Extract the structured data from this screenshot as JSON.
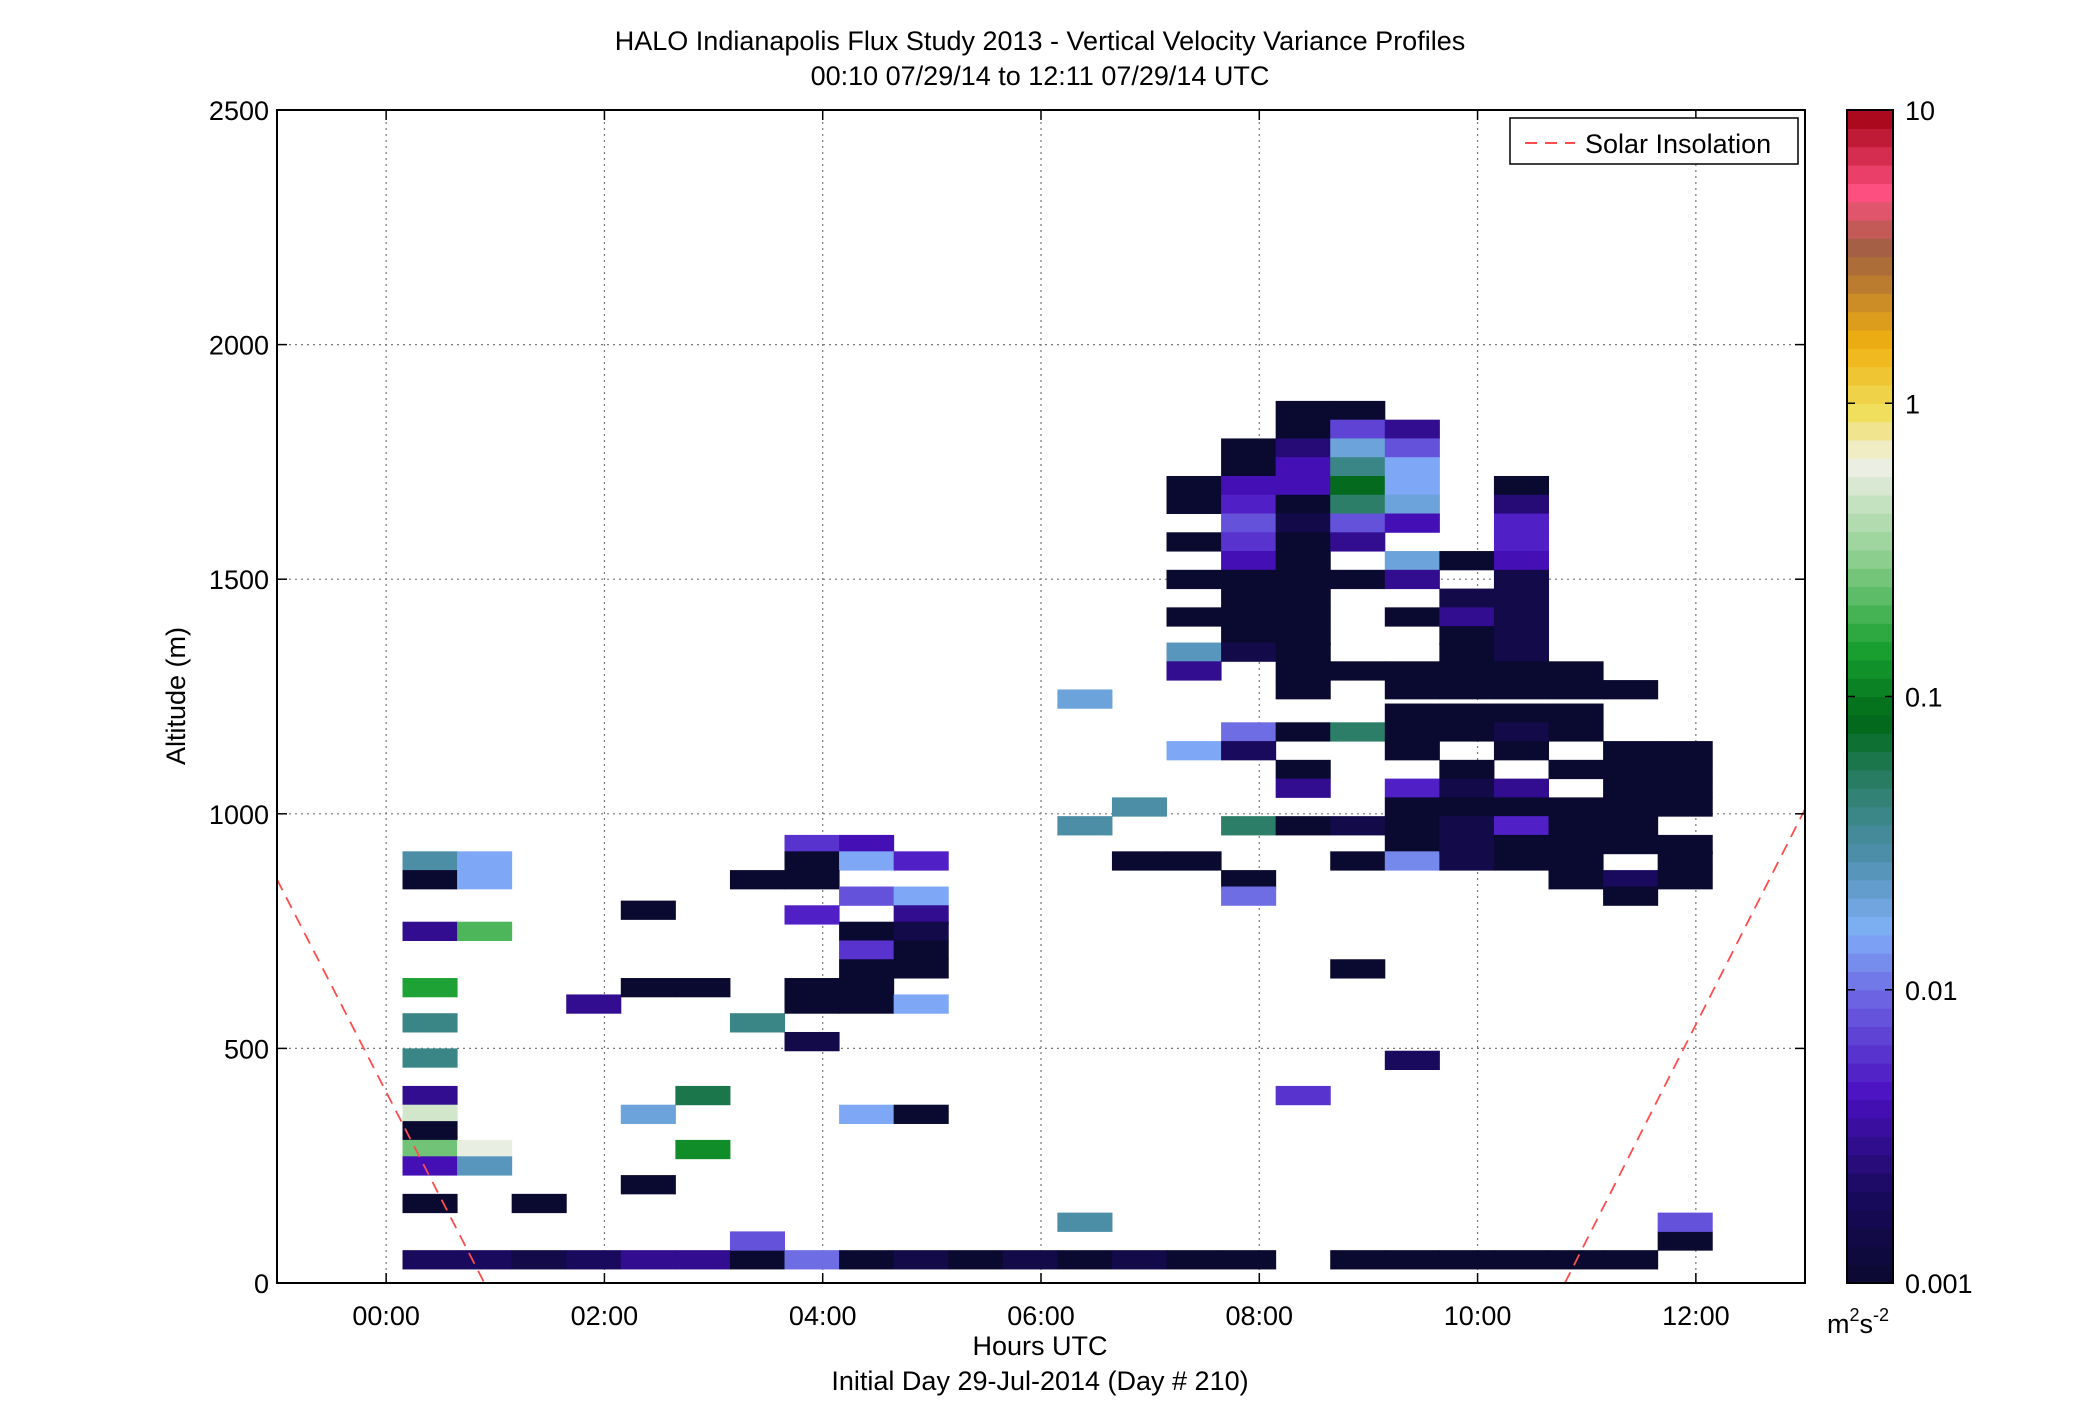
{
  "chart_data": {
    "type": "heatmap",
    "title": "HALO Indianapolis Flux Study 2013 - Vertical Velocity Variance Profiles",
    "subtitle": "00:10 07/29/14 to 12:11 07/29/14  UTC",
    "xlabel": "Hours UTC",
    "xlabel2": "Initial Day 29-Jul-2014 (Day # 210)",
    "ylabel": "Altitude (m)",
    "xlim": [
      -1.0,
      13.0
    ],
    "ylim": [
      0,
      2500
    ],
    "xticks": [
      0,
      2,
      4,
      6,
      8,
      10,
      12
    ],
    "xtick_labels": [
      "00:00",
      "02:00",
      "04:00",
      "06:00",
      "08:00",
      "10:00",
      "12:00"
    ],
    "yticks": [
      0,
      500,
      1000,
      1500,
      2000,
      2500
    ],
    "ytick_labels": [
      "0",
      "500",
      "1000",
      "1500",
      "2000",
      "2500"
    ],
    "grid": true,
    "legend": {
      "position": "top-right",
      "entries": [
        {
          "label": "Solar Insolation",
          "color": "#ff4c4c",
          "style": "dashed"
        }
      ]
    },
    "colorbar": {
      "scale": "log",
      "range": [
        0.001,
        10
      ],
      "tick_values": [
        0.001,
        0.01,
        0.1,
        1,
        10
      ],
      "tick_labels": [
        "0.001",
        "0.01",
        "0.1",
        "1",
        "10"
      ],
      "units_base": "m",
      "units_exp1": "2",
      "units_mid": "s",
      "units_exp2": "-2"
    },
    "cell_width_hours": 0.5,
    "cell_height_m": 40,
    "cells": [
      {
        "t": 0.4,
        "z": 900,
        "v": 0.03
      },
      {
        "t": 0.9,
        "z": 900,
        "v": 0.015
      },
      {
        "t": 0.4,
        "z": 860,
        "v": 0.001
      },
      {
        "t": 0.9,
        "z": 860,
        "v": 0.015
      },
      {
        "t": 0.4,
        "z": 750,
        "v": 0.003
      },
      {
        "t": 0.9,
        "z": 750,
        "v": 0.2
      },
      {
        "t": 0.4,
        "z": 630,
        "v": 0.15
      },
      {
        "t": 0.4,
        "z": 555,
        "v": 0.04
      },
      {
        "t": 0.4,
        "z": 480,
        "v": 0.04
      },
      {
        "t": 0.4,
        "z": 400,
        "v": 0.003
      },
      {
        "t": 0.4,
        "z": 360,
        "v": 0.5
      },
      {
        "t": 0.4,
        "z": 325,
        "v": 0.001
      },
      {
        "t": 0.4,
        "z": 285,
        "v": 0.25
      },
      {
        "t": 0.9,
        "z": 285,
        "v": 0.6
      },
      {
        "t": 0.4,
        "z": 250,
        "v": 0.004
      },
      {
        "t": 0.9,
        "z": 250,
        "v": 0.025
      },
      {
        "t": 0.4,
        "z": 170,
        "v": 0.001
      },
      {
        "t": 1.4,
        "z": 170,
        "v": 0.001
      },
      {
        "t": 0.4,
        "z": 50,
        "v": 0.002
      },
      {
        "t": 0.9,
        "z": 50,
        "v": 0.002
      },
      {
        "t": 1.4,
        "z": 50,
        "v": 0.0015
      },
      {
        "t": 1.9,
        "z": 50,
        "v": 0.002
      },
      {
        "t": 2.4,
        "z": 50,
        "v": 0.003
      },
      {
        "t": 2.9,
        "z": 50,
        "v": 0.003
      },
      {
        "t": 3.4,
        "z": 50,
        "v": 0.001
      },
      {
        "t": 3.4,
        "z": 90,
        "v": 0.008
      },
      {
        "t": 3.9,
        "z": 50,
        "v": 0.01
      },
      {
        "t": 4.4,
        "z": 50,
        "v": 0.001
      },
      {
        "t": 4.9,
        "z": 50,
        "v": 0.0015
      },
      {
        "t": 5.4,
        "z": 50,
        "v": 0.001
      },
      {
        "t": 5.9,
        "z": 50,
        "v": 0.0015
      },
      {
        "t": 6.4,
        "z": 50,
        "v": 0.001
      },
      {
        "t": 6.9,
        "z": 50,
        "v": 0.0015
      },
      {
        "t": 7.4,
        "z": 50,
        "v": 0.001
      },
      {
        "t": 7.9,
        "z": 50,
        "v": 0.001
      },
      {
        "t": 8.9,
        "z": 50,
        "v": 0.001
      },
      {
        "t": 9.4,
        "z": 50,
        "v": 0.001
      },
      {
        "t": 9.9,
        "z": 50,
        "v": 0.001
      },
      {
        "t": 10.4,
        "z": 50,
        "v": 0.001
      },
      {
        "t": 10.9,
        "z": 50,
        "v": 0.001
      },
      {
        "t": 11.4,
        "z": 50,
        "v": 0.001
      },
      {
        "t": 11.9,
        "z": 90,
        "v": 0.001
      },
      {
        "t": 11.9,
        "z": 130,
        "v": 0.008
      },
      {
        "t": 2.4,
        "z": 795,
        "v": 0.001
      },
      {
        "t": 2.4,
        "z": 360,
        "v": 0.02
      },
      {
        "t": 2.4,
        "z": 210,
        "v": 0.001
      },
      {
        "t": 2.9,
        "z": 400,
        "v": 0.06
      },
      {
        "t": 2.9,
        "z": 285,
        "v": 0.12
      },
      {
        "t": 1.9,
        "z": 595,
        "v": 0.003
      },
      {
        "t": 2.4,
        "z": 630,
        "v": 0.001
      },
      {
        "t": 2.9,
        "z": 630,
        "v": 0.001
      },
      {
        "t": 3.4,
        "z": 555,
        "v": 0.04
      },
      {
        "t": 3.4,
        "z": 860,
        "v": 0.001
      },
      {
        "t": 3.9,
        "z": 935,
        "v": 0.006
      },
      {
        "t": 4.4,
        "z": 935,
        "v": 0.004
      },
      {
        "t": 3.9,
        "z": 900,
        "v": 0.001
      },
      {
        "t": 4.4,
        "z": 900,
        "v": 0.015
      },
      {
        "t": 4.9,
        "z": 900,
        "v": 0.005
      },
      {
        "t": 3.9,
        "z": 860,
        "v": 0.001
      },
      {
        "t": 4.4,
        "z": 825,
        "v": 0.008
      },
      {
        "t": 4.9,
        "z": 825,
        "v": 0.015
      },
      {
        "t": 3.9,
        "z": 785,
        "v": 0.005
      },
      {
        "t": 4.9,
        "z": 785,
        "v": 0.003
      },
      {
        "t": 4.4,
        "z": 750,
        "v": 0.001
      },
      {
        "t": 4.9,
        "z": 750,
        "v": 0.0015
      },
      {
        "t": 4.4,
        "z": 710,
        "v": 0.006
      },
      {
        "t": 4.9,
        "z": 710,
        "v": 0.001
      },
      {
        "t": 4.4,
        "z": 670,
        "v": 0.001
      },
      {
        "t": 4.9,
        "z": 670,
        "v": 0.001
      },
      {
        "t": 3.9,
        "z": 630,
        "v": 0.001
      },
      {
        "t": 4.4,
        "z": 630,
        "v": 0.001
      },
      {
        "t": 3.9,
        "z": 595,
        "v": 0.001
      },
      {
        "t": 4.4,
        "z": 595,
        "v": 0.001
      },
      {
        "t": 4.9,
        "z": 595,
        "v": 0.015
      },
      {
        "t": 3.9,
        "z": 515,
        "v": 0.0015
      },
      {
        "t": 4.4,
        "z": 360,
        "v": 0.015
      },
      {
        "t": 4.9,
        "z": 360,
        "v": 0.001
      },
      {
        "t": 6.4,
        "z": 1245,
        "v": 0.02
      },
      {
        "t": 6.4,
        "z": 975,
        "v": 0.03
      },
      {
        "t": 6.9,
        "z": 1015,
        "v": 0.03
      },
      {
        "t": 6.4,
        "z": 130,
        "v": 0.03
      },
      {
        "t": 6.9,
        "z": 900,
        "v": 0.001
      },
      {
        "t": 7.4,
        "z": 900,
        "v": 0.001
      },
      {
        "t": 7.4,
        "z": 1700,
        "v": 0.001
      },
      {
        "t": 7.4,
        "z": 1660,
        "v": 0.001
      },
      {
        "t": 7.4,
        "z": 1580,
        "v": 0.001
      },
      {
        "t": 7.4,
        "z": 1500,
        "v": 0.001
      },
      {
        "t": 7.4,
        "z": 1420,
        "v": 0.001
      },
      {
        "t": 7.4,
        "z": 1345,
        "v": 0.025
      },
      {
        "t": 7.4,
        "z": 1305,
        "v": 0.003
      },
      {
        "t": 7.4,
        "z": 1135,
        "v": 0.015
      },
      {
        "t": 7.9,
        "z": 1780,
        "v": 0.001
      },
      {
        "t": 7.9,
        "z": 1740,
        "v": 0.001
      },
      {
        "t": 7.9,
        "z": 1700,
        "v": 0.004
      },
      {
        "t": 7.9,
        "z": 1660,
        "v": 0.005
      },
      {
        "t": 7.9,
        "z": 1620,
        "v": 0.008
      },
      {
        "t": 7.9,
        "z": 1580,
        "v": 0.006
      },
      {
        "t": 7.9,
        "z": 1540,
        "v": 0.004
      },
      {
        "t": 7.9,
        "z": 1500,
        "v": 0.001
      },
      {
        "t": 7.9,
        "z": 1460,
        "v": 0.001
      },
      {
        "t": 7.9,
        "z": 1420,
        "v": 0.001
      },
      {
        "t": 7.9,
        "z": 1380,
        "v": 0.001
      },
      {
        "t": 7.9,
        "z": 1345,
        "v": 0.0015
      },
      {
        "t": 7.9,
        "z": 1175,
        "v": 0.01
      },
      {
        "t": 7.9,
        "z": 1135,
        "v": 0.002
      },
      {
        "t": 7.9,
        "z": 975,
        "v": 0.05
      },
      {
        "t": 7.9,
        "z": 860,
        "v": 0.001
      },
      {
        "t": 7.9,
        "z": 825,
        "v": 0.01
      },
      {
        "t": 8.4,
        "z": 1860,
        "v": 0.001
      },
      {
        "t": 8.4,
        "z": 1820,
        "v": 0.001
      },
      {
        "t": 8.4,
        "z": 1780,
        "v": 0.0025
      },
      {
        "t": 8.4,
        "z": 1740,
        "v": 0.004
      },
      {
        "t": 8.4,
        "z": 1700,
        "v": 0.004
      },
      {
        "t": 8.4,
        "z": 1660,
        "v": 0.001
      },
      {
        "t": 8.4,
        "z": 1620,
        "v": 0.0015
      },
      {
        "t": 8.4,
        "z": 1580,
        "v": 0.001
      },
      {
        "t": 8.4,
        "z": 1540,
        "v": 0.001
      },
      {
        "t": 8.4,
        "z": 1500,
        "v": 0.001
      },
      {
        "t": 8.4,
        "z": 1460,
        "v": 0.001
      },
      {
        "t": 8.4,
        "z": 1420,
        "v": 0.001
      },
      {
        "t": 8.4,
        "z": 1380,
        "v": 0.001
      },
      {
        "t": 8.4,
        "z": 1345,
        "v": 0.001
      },
      {
        "t": 8.4,
        "z": 1305,
        "v": 0.001
      },
      {
        "t": 8.4,
        "z": 1265,
        "v": 0.001
      },
      {
        "t": 8.4,
        "z": 1175,
        "v": 0.001
      },
      {
        "t": 8.4,
        "z": 1095,
        "v": 0.001
      },
      {
        "t": 8.4,
        "z": 1055,
        "v": 0.003
      },
      {
        "t": 8.4,
        "z": 975,
        "v": 0.001
      },
      {
        "t": 8.4,
        "z": 400,
        "v": 0.006
      },
      {
        "t": 8.9,
        "z": 1860,
        "v": 0.001
      },
      {
        "t": 8.9,
        "z": 1820,
        "v": 0.007
      },
      {
        "t": 8.9,
        "z": 1780,
        "v": 0.02
      },
      {
        "t": 8.9,
        "z": 1740,
        "v": 0.04
      },
      {
        "t": 8.9,
        "z": 1700,
        "v": 0.08
      },
      {
        "t": 8.9,
        "z": 1660,
        "v": 0.05
      },
      {
        "t": 8.9,
        "z": 1620,
        "v": 0.008
      },
      {
        "t": 8.9,
        "z": 1580,
        "v": 0.003
      },
      {
        "t": 8.9,
        "z": 1500,
        "v": 0.001
      },
      {
        "t": 8.9,
        "z": 1305,
        "v": 0.001
      },
      {
        "t": 8.9,
        "z": 1175,
        "v": 0.05
      },
      {
        "t": 8.9,
        "z": 975,
        "v": 0.0015
      },
      {
        "t": 8.9,
        "z": 900,
        "v": 0.001
      },
      {
        "t": 8.9,
        "z": 670,
        "v": 0.001
      },
      {
        "t": 9.4,
        "z": 1820,
        "v": 0.003
      },
      {
        "t": 9.4,
        "z": 1780,
        "v": 0.008
      },
      {
        "t": 9.4,
        "z": 1740,
        "v": 0.015
      },
      {
        "t": 9.4,
        "z": 1700,
        "v": 0.015
      },
      {
        "t": 9.4,
        "z": 1660,
        "v": 0.02
      },
      {
        "t": 9.4,
        "z": 1620,
        "v": 0.004
      },
      {
        "t": 9.4,
        "z": 1540,
        "v": 0.02
      },
      {
        "t": 9.4,
        "z": 1500,
        "v": 0.003
      },
      {
        "t": 9.4,
        "z": 1420,
        "v": 0.001
      },
      {
        "t": 9.4,
        "z": 1305,
        "v": 0.001
      },
      {
        "t": 9.4,
        "z": 1265,
        "v": 0.001
      },
      {
        "t": 9.4,
        "z": 1215,
        "v": 0.001
      },
      {
        "t": 9.4,
        "z": 1175,
        "v": 0.001
      },
      {
        "t": 9.4,
        "z": 1135,
        "v": 0.001
      },
      {
        "t": 9.4,
        "z": 1055,
        "v": 0.005
      },
      {
        "t": 9.4,
        "z": 1015,
        "v": 0.001
      },
      {
        "t": 9.4,
        "z": 975,
        "v": 0.001
      },
      {
        "t": 9.4,
        "z": 935,
        "v": 0.001
      },
      {
        "t": 9.4,
        "z": 900,
        "v": 0.012
      },
      {
        "t": 9.4,
        "z": 475,
        "v": 0.002
      },
      {
        "t": 9.9,
        "z": 1540,
        "v": 0.001
      },
      {
        "t": 9.9,
        "z": 1460,
        "v": 0.0015
      },
      {
        "t": 9.9,
        "z": 1420,
        "v": 0.003
      },
      {
        "t": 9.9,
        "z": 1380,
        "v": 0.001
      },
      {
        "t": 9.9,
        "z": 1345,
        "v": 0.001
      },
      {
        "t": 9.9,
        "z": 1305,
        "v": 0.001
      },
      {
        "t": 9.9,
        "z": 1265,
        "v": 0.001
      },
      {
        "t": 9.9,
        "z": 1215,
        "v": 0.001
      },
      {
        "t": 9.9,
        "z": 1175,
        "v": 0.001
      },
      {
        "t": 9.9,
        "z": 1095,
        "v": 0.001
      },
      {
        "t": 9.9,
        "z": 1055,
        "v": 0.0015
      },
      {
        "t": 9.9,
        "z": 1015,
        "v": 0.001
      },
      {
        "t": 9.9,
        "z": 975,
        "v": 0.0015
      },
      {
        "t": 9.9,
        "z": 935,
        "v": 0.0015
      },
      {
        "t": 9.9,
        "z": 900,
        "v": 0.0015
      },
      {
        "t": 10.4,
        "z": 1700,
        "v": 0.001
      },
      {
        "t": 10.4,
        "z": 1660,
        "v": 0.0025
      },
      {
        "t": 10.4,
        "z": 1620,
        "v": 0.005
      },
      {
        "t": 10.4,
        "z": 1580,
        "v": 0.005
      },
      {
        "t": 10.4,
        "z": 1540,
        "v": 0.004
      },
      {
        "t": 10.4,
        "z": 1500,
        "v": 0.0015
      },
      {
        "t": 10.4,
        "z": 1460,
        "v": 0.0015
      },
      {
        "t": 10.4,
        "z": 1420,
        "v": 0.0015
      },
      {
        "t": 10.4,
        "z": 1380,
        "v": 0.0015
      },
      {
        "t": 10.4,
        "z": 1345,
        "v": 0.0015
      },
      {
        "t": 10.4,
        "z": 1305,
        "v": 0.001
      },
      {
        "t": 10.4,
        "z": 1265,
        "v": 0.001
      },
      {
        "t": 10.4,
        "z": 1215,
        "v": 0.001
      },
      {
        "t": 10.4,
        "z": 1175,
        "v": 0.0015
      },
      {
        "t": 10.4,
        "z": 1135,
        "v": 0.001
      },
      {
        "t": 10.4,
        "z": 1055,
        "v": 0.003
      },
      {
        "t": 10.4,
        "z": 1015,
        "v": 0.001
      },
      {
        "t": 10.4,
        "z": 975,
        "v": 0.005
      },
      {
        "t": 10.4,
        "z": 935,
        "v": 0.001
      },
      {
        "t": 10.4,
        "z": 900,
        "v": 0.001
      },
      {
        "t": 10.9,
        "z": 1305,
        "v": 0.001
      },
      {
        "t": 10.9,
        "z": 1265,
        "v": 0.001
      },
      {
        "t": 10.9,
        "z": 1215,
        "v": 0.001
      },
      {
        "t": 10.9,
        "z": 1175,
        "v": 0.001
      },
      {
        "t": 10.9,
        "z": 1095,
        "v": 0.001
      },
      {
        "t": 10.9,
        "z": 1015,
        "v": 0.001
      },
      {
        "t": 10.9,
        "z": 975,
        "v": 0.001
      },
      {
        "t": 10.9,
        "z": 935,
        "v": 0.001
      },
      {
        "t": 10.9,
        "z": 900,
        "v": 0.001
      },
      {
        "t": 10.9,
        "z": 860,
        "v": 0.001
      },
      {
        "t": 11.4,
        "z": 1265,
        "v": 0.001
      },
      {
        "t": 11.4,
        "z": 1135,
        "v": 0.001
      },
      {
        "t": 11.4,
        "z": 1095,
        "v": 0.001
      },
      {
        "t": 11.4,
        "z": 1055,
        "v": 0.001
      },
      {
        "t": 11.4,
        "z": 1015,
        "v": 0.001
      },
      {
        "t": 11.4,
        "z": 975,
        "v": 0.001
      },
      {
        "t": 11.4,
        "z": 935,
        "v": 0.001
      },
      {
        "t": 11.4,
        "z": 860,
        "v": 0.002
      },
      {
        "t": 11.4,
        "z": 825,
        "v": 0.001
      },
      {
        "t": 11.9,
        "z": 1135,
        "v": 0.001
      },
      {
        "t": 11.9,
        "z": 1095,
        "v": 0.001
      },
      {
        "t": 11.9,
        "z": 1055,
        "v": 0.001
      },
      {
        "t": 11.9,
        "z": 1015,
        "v": 0.001
      },
      {
        "t": 11.9,
        "z": 935,
        "v": 0.001
      },
      {
        "t": 11.9,
        "z": 900,
        "v": 0.001
      },
      {
        "t": 11.9,
        "z": 860,
        "v": 0.001
      }
    ],
    "solar_insolation": [
      {
        "x": [
          -1.0,
          0.9
        ],
        "y": [
          860,
          0
        ]
      },
      {
        "x": [
          10.8,
          13.0
        ],
        "y": [
          0,
          1010
        ]
      }
    ],
    "colormap_stops": [
      [
        0.0,
        "#0a0a30"
      ],
      [
        0.08,
        "#1a0a60"
      ],
      [
        0.16,
        "#4a10c0"
      ],
      [
        0.24,
        "#6a60e0"
      ],
      [
        0.3,
        "#80b0f8"
      ],
      [
        0.36,
        "#5090b0"
      ],
      [
        0.42,
        "#308070"
      ],
      [
        0.48,
        "#006818"
      ],
      [
        0.54,
        "#18a030"
      ],
      [
        0.62,
        "#90d090"
      ],
      [
        0.7,
        "#f0f0e8"
      ],
      [
        0.74,
        "#f0e060"
      ],
      [
        0.8,
        "#f0b010"
      ],
      [
        0.88,
        "#a06040"
      ],
      [
        0.93,
        "#ff5080"
      ],
      [
        1.0,
        "#a00010"
      ]
    ]
  }
}
